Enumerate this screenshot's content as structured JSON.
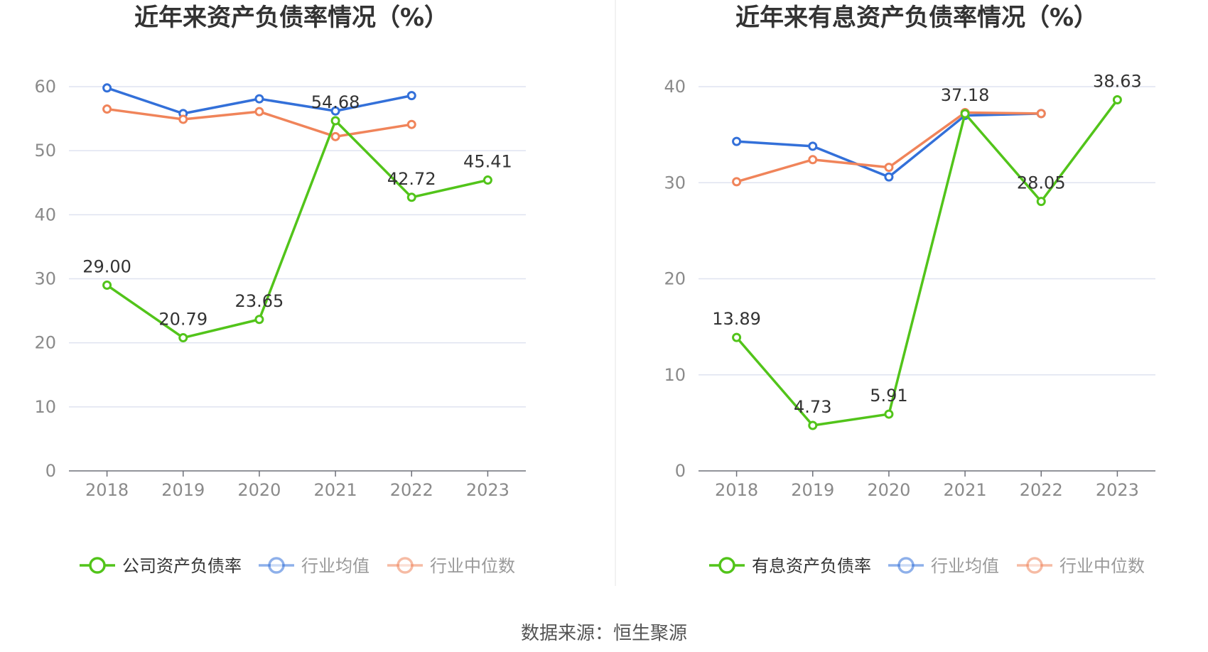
{
  "source_label": "数据来源：恒生聚源",
  "chart_data": [
    {
      "type": "line",
      "title": "近年来资产负债率情况（%）",
      "categories": [
        "2018",
        "2019",
        "2020",
        "2021",
        "2022",
        "2023"
      ],
      "ylim": [
        0,
        60
      ],
      "yticks": [
        0,
        10,
        20,
        30,
        40,
        50,
        60
      ],
      "grid": true,
      "legend_position": "bottom",
      "series": [
        {
          "name": "公司资产负债率",
          "color": "#52c41a",
          "values": [
            29.0,
            20.79,
            23.65,
            54.68,
            42.72,
            45.41
          ],
          "labels": [
            "29.00",
            "20.79",
            "23.65",
            "54.68",
            "42.72",
            "45.41"
          ]
        },
        {
          "name": "行业均值",
          "color": "#3370d9",
          "values": [
            59.8,
            55.8,
            58.1,
            56.2,
            58.6,
            null
          ]
        },
        {
          "name": "行业中位数",
          "color": "#f0845a",
          "values": [
            56.5,
            54.9,
            56.1,
            52.2,
            54.1,
            null
          ]
        }
      ]
    },
    {
      "type": "line",
      "title": "近年来有息资产负债率情况（%）",
      "categories": [
        "2018",
        "2019",
        "2020",
        "2021",
        "2022",
        "2023"
      ],
      "ylim": [
        0,
        40
      ],
      "yticks": [
        0,
        10,
        20,
        30,
        40
      ],
      "grid": true,
      "legend_position": "bottom",
      "series": [
        {
          "name": "有息资产负债率",
          "color": "#52c41a",
          "values": [
            13.89,
            4.73,
            5.91,
            37.18,
            28.05,
            38.63
          ],
          "labels": [
            "13.89",
            "4.73",
            "5.91",
            "37.18",
            "28.05",
            "38.63"
          ]
        },
        {
          "name": "行业均值",
          "color": "#3370d9",
          "values": [
            34.3,
            33.8,
            30.6,
            37.0,
            37.2,
            null
          ]
        },
        {
          "name": "行业中位数",
          "color": "#f0845a",
          "values": [
            30.1,
            32.4,
            31.6,
            37.3,
            37.2,
            null
          ]
        }
      ]
    }
  ]
}
